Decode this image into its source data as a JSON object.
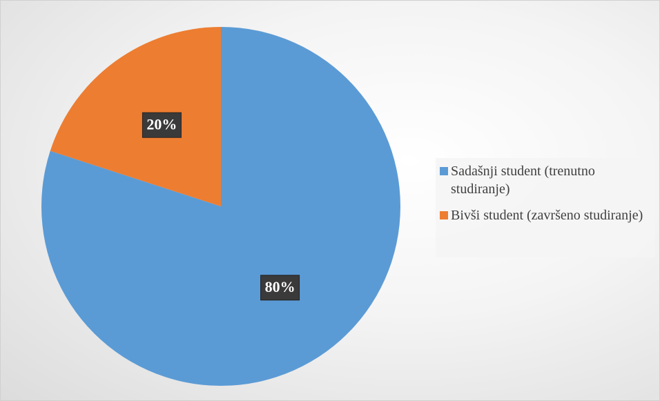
{
  "chart_data": {
    "type": "pie",
    "categories": [
      "Sadašnji student (trenutno studiranje)",
      "Bivši student (završeno studiranje)"
    ],
    "values": [
      80,
      20
    ],
    "value_labels": [
      "80%",
      "20%"
    ],
    "colors": [
      "#5b9bd5",
      "#ed7d31"
    ],
    "legend": "right"
  }
}
